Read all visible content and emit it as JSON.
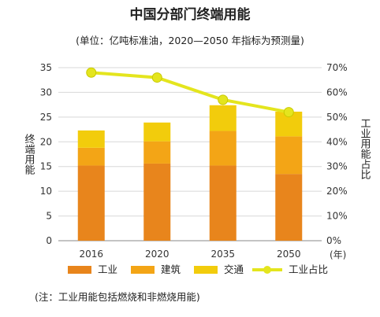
{
  "chart_data": {
    "type": "bar",
    "stacked": true,
    "title": "中国分部门终端用能",
    "subtitle": "(单位：亿吨标准油，2020—2050 年指标为预测量)",
    "categories": [
      "2016",
      "2020",
      "2035",
      "2050"
    ],
    "x_unit": "(年)",
    "ylabel_left": "终端用能",
    "ylabel_right": "工业用能占比",
    "ylim_left": [
      0,
      35
    ],
    "yticks_left": [
      "0",
      "5",
      "10",
      "15",
      "20",
      "25",
      "30",
      "35"
    ],
    "ylim_right": [
      0,
      70
    ],
    "yticks_right": [
      "0%",
      "10%",
      "20%",
      "30%",
      "40%",
      "50%",
      "60%",
      "70%"
    ],
    "series": [
      {
        "name": "工业",
        "values": [
          15.2,
          15.6,
          15.2,
          13.5
        ],
        "color": "#e8851c"
      },
      {
        "name": "建筑",
        "values": [
          3.6,
          4.5,
          7.0,
          7.6
        ],
        "color": "#f3a516"
      },
      {
        "name": "交通",
        "values": [
          3.5,
          3.8,
          5.2,
          5.0
        ],
        "color": "#f2cc0c"
      }
    ],
    "line_series": {
      "name": "工业占比",
      "values": [
        68,
        66,
        57,
        52
      ],
      "color": "#e4e51e",
      "axis": "right"
    },
    "note": "(注：工业用能包括燃烧和非燃烧用能)"
  }
}
